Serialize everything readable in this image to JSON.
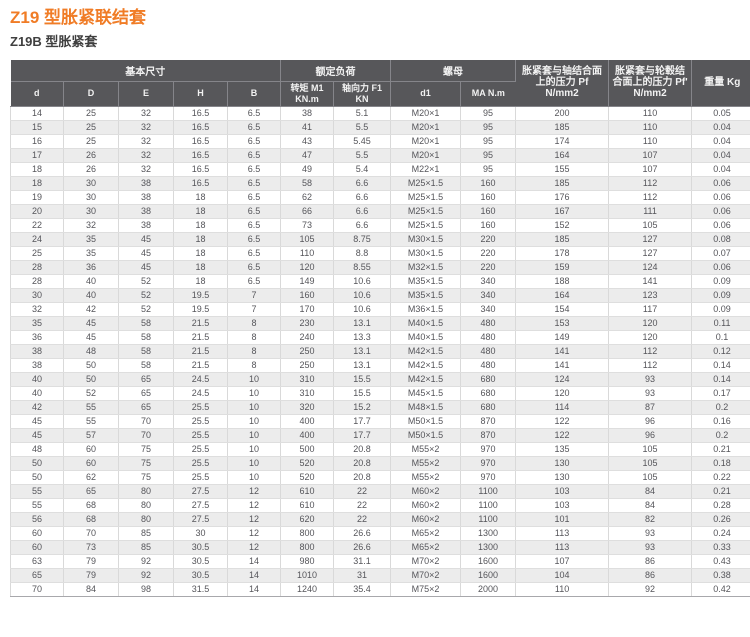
{
  "page": {
    "title": "Z19 型胀紧联结套",
    "subtitle": "Z19B 型胀紧套"
  },
  "colors": {
    "title_accent": "#f07c26",
    "header_bg": "#57575a",
    "header_text": "#f2f2f2",
    "row_stripe": "#ececec",
    "body_text": "#55555a"
  },
  "table": {
    "header": {
      "group_basic_size": "基本尺寸",
      "group_rated_load": "额定负荷",
      "group_nut": "螺母",
      "d": "d",
      "D": "D",
      "E": "E",
      "H": "H",
      "B": "B",
      "torque_l1": "转矩 M1",
      "torque_l2": "KN.m",
      "axial_l1": "轴向力 F1",
      "axial_l2": "KN",
      "d1": "d1",
      "ma": "MA N.m",
      "pf_shaft": "胀紧套与轴结合面上的压力 Pf N/mm2",
      "pf_hub": "胀紧套与轮毂结合面上的压力 Pf' N/mm2",
      "weight": "重量 Kg"
    },
    "rows": [
      [
        "14",
        "25",
        "32",
        "16.5",
        "6.5",
        "38",
        "5.1",
        "M20×1",
        "95",
        "200",
        "110",
        "0.05"
      ],
      [
        "15",
        "25",
        "32",
        "16.5",
        "6.5",
        "41",
        "5.5",
        "M20×1",
        "95",
        "185",
        "110",
        "0.04"
      ],
      [
        "16",
        "25",
        "32",
        "16.5",
        "6.5",
        "43",
        "5.45",
        "M20×1",
        "95",
        "174",
        "110",
        "0.04"
      ],
      [
        "17",
        "26",
        "32",
        "16.5",
        "6.5",
        "47",
        "5.5",
        "M20×1",
        "95",
        "164",
        "107",
        "0.04"
      ],
      [
        "18",
        "26",
        "32",
        "16.5",
        "6.5",
        "49",
        "5.4",
        "M22×1",
        "95",
        "155",
        "107",
        "0.04"
      ],
      [
        "18",
        "30",
        "38",
        "16.5",
        "6.5",
        "58",
        "6.6",
        "M25×1.5",
        "160",
        "185",
        "112",
        "0.06"
      ],
      [
        "19",
        "30",
        "38",
        "18",
        "6.5",
        "62",
        "6.6",
        "M25×1.5",
        "160",
        "176",
        "112",
        "0.06"
      ],
      [
        "20",
        "30",
        "38",
        "18",
        "6.5",
        "66",
        "6.6",
        "M25×1.5",
        "160",
        "167",
        "111",
        "0.06"
      ],
      [
        "22",
        "32",
        "38",
        "18",
        "6.5",
        "73",
        "6.6",
        "M25×1.5",
        "160",
        "152",
        "105",
        "0.06"
      ],
      [
        "24",
        "35",
        "45",
        "18",
        "6.5",
        "105",
        "8.75",
        "M30×1.5",
        "220",
        "185",
        "127",
        "0.08"
      ],
      [
        "25",
        "35",
        "45",
        "18",
        "6.5",
        "110",
        "8.8",
        "M30×1.5",
        "220",
        "178",
        "127",
        "0.07"
      ],
      [
        "28",
        "36",
        "45",
        "18",
        "6.5",
        "120",
        "8.55",
        "M32×1.5",
        "220",
        "159",
        "124",
        "0.06"
      ],
      [
        "28",
        "40",
        "52",
        "18",
        "6.5",
        "149",
        "10.6",
        "M35×1.5",
        "340",
        "188",
        "141",
        "0.09"
      ],
      [
        "30",
        "40",
        "52",
        "19.5",
        "7",
        "160",
        "10.6",
        "M35×1.5",
        "340",
        "164",
        "123",
        "0.09"
      ],
      [
        "32",
        "42",
        "52",
        "19.5",
        "7",
        "170",
        "10.6",
        "M36×1.5",
        "340",
        "154",
        "117",
        "0.09"
      ],
      [
        "35",
        "45",
        "58",
        "21.5",
        "8",
        "230",
        "13.1",
        "M40×1.5",
        "480",
        "153",
        "120",
        "0.11"
      ],
      [
        "36",
        "45",
        "58",
        "21.5",
        "8",
        "240",
        "13.3",
        "M40×1.5",
        "480",
        "149",
        "120",
        "0.1"
      ],
      [
        "38",
        "48",
        "58",
        "21.5",
        "8",
        "250",
        "13.1",
        "M42×1.5",
        "480",
        "141",
        "112",
        "0.12"
      ],
      [
        "38",
        "50",
        "58",
        "21.5",
        "8",
        "250",
        "13.1",
        "M42×1.5",
        "480",
        "141",
        "112",
        "0.14"
      ],
      [
        "40",
        "50",
        "65",
        "24.5",
        "10",
        "310",
        "15.5",
        "M42×1.5",
        "680",
        "124",
        "93",
        "0.14"
      ],
      [
        "40",
        "52",
        "65",
        "24.5",
        "10",
        "310",
        "15.5",
        "M45×1.5",
        "680",
        "120",
        "93",
        "0.17"
      ],
      [
        "42",
        "55",
        "65",
        "25.5",
        "10",
        "320",
        "15.2",
        "M48×1.5",
        "680",
        "114",
        "87",
        "0.2"
      ],
      [
        "45",
        "55",
        "70",
        "25.5",
        "10",
        "400",
        "17.7",
        "M50×1.5",
        "870",
        "122",
        "96",
        "0.16"
      ],
      [
        "45",
        "57",
        "70",
        "25.5",
        "10",
        "400",
        "17.7",
        "M50×1.5",
        "870",
        "122",
        "96",
        "0.2"
      ],
      [
        "48",
        "60",
        "75",
        "25.5",
        "10",
        "500",
        "20.8",
        "M55×2",
        "970",
        "135",
        "105",
        "0.21"
      ],
      [
        "50",
        "60",
        "75",
        "25.5",
        "10",
        "520",
        "20.8",
        "M55×2",
        "970",
        "130",
        "105",
        "0.18"
      ],
      [
        "50",
        "62",
        "75",
        "25.5",
        "10",
        "520",
        "20.8",
        "M55×2",
        "970",
        "130",
        "105",
        "0.22"
      ],
      [
        "55",
        "65",
        "80",
        "27.5",
        "12",
        "610",
        "22",
        "M60×2",
        "1100",
        "103",
        "84",
        "0.21"
      ],
      [
        "55",
        "68",
        "80",
        "27.5",
        "12",
        "610",
        "22",
        "M60×2",
        "1100",
        "103",
        "84",
        "0.28"
      ],
      [
        "56",
        "68",
        "80",
        "27.5",
        "12",
        "620",
        "22",
        "M60×2",
        "1100",
        "101",
        "82",
        "0.26"
      ],
      [
        "60",
        "70",
        "85",
        "30",
        "12",
        "800",
        "26.6",
        "M65×2",
        "1300",
        "113",
        "93",
        "0.24"
      ],
      [
        "60",
        "73",
        "85",
        "30.5",
        "12",
        "800",
        "26.6",
        "M65×2",
        "1300",
        "113",
        "93",
        "0.33"
      ],
      [
        "63",
        "79",
        "92",
        "30.5",
        "14",
        "980",
        "31.1",
        "M70×2",
        "1600",
        "107",
        "86",
        "0.43"
      ],
      [
        "65",
        "79",
        "92",
        "30.5",
        "14",
        "1010",
        "31",
        "M70×2",
        "1600",
        "104",
        "86",
        "0.38"
      ],
      [
        "70",
        "84",
        "98",
        "31.5",
        "14",
        "1240",
        "35.4",
        "M75×2",
        "2000",
        "110",
        "92",
        "0.42"
      ]
    ]
  }
}
